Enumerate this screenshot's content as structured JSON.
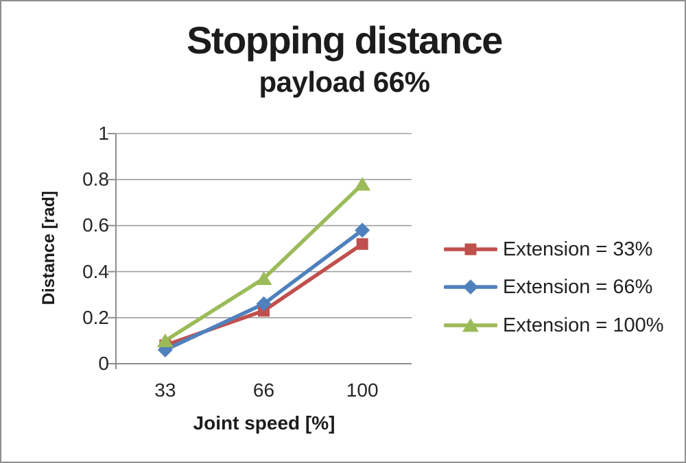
{
  "chart_data": {
    "type": "line",
    "title": "Stopping distance",
    "subtitle": "payload 66%",
    "xlabel": "Joint speed [%]",
    "ylabel": "Distance [rad]",
    "categories": [
      "33",
      "66",
      "100"
    ],
    "y_ticks": [
      {
        "label": "1",
        "value": 1.0
      },
      {
        "label": "0.8",
        "value": 0.8
      },
      {
        "label": "0.6",
        "value": 0.6
      },
      {
        "label": "0.4",
        "value": 0.4
      },
      {
        "label": "0.2",
        "value": 0.2
      },
      {
        "label": "0",
        "value": 0.0
      }
    ],
    "ylim": [
      0,
      1
    ],
    "grid": true,
    "legend_position": "right",
    "series": [
      {
        "name": "Extension = 33%",
        "color": "#C0504D",
        "marker": "square",
        "values": [
          0.08,
          0.23,
          0.52
        ]
      },
      {
        "name": "Extension = 66%",
        "color": "#4F81BD",
        "marker": "diamond",
        "values": [
          0.06,
          0.26,
          0.58
        ]
      },
      {
        "name": "Extension = 100%",
        "color": "#9BBB59",
        "marker": "triangle",
        "values": [
          0.1,
          0.37,
          0.78
        ]
      }
    ],
    "colors": {
      "axis": "#8e8e8e",
      "grid": "#9d9d9d",
      "text": "#1f1f1f"
    }
  }
}
